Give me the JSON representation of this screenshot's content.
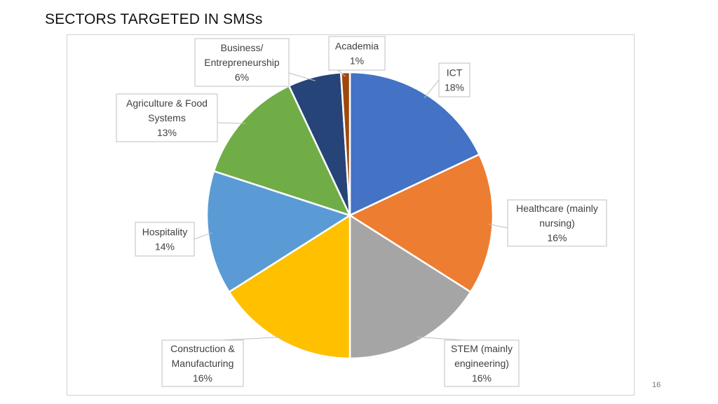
{
  "slide": {
    "title": "SECTORS TARGETED IN SMSs",
    "page_number": "16"
  },
  "chart_data": {
    "type": "pie",
    "title": "",
    "start_angle_deg": 0,
    "direction": "clockwise",
    "legend": "none",
    "slices": [
      {
        "name": "ICT",
        "value": 18,
        "label": "18%",
        "color": "#4472C4",
        "label_lines": [
          "ICT",
          "18%"
        ]
      },
      {
        "name": "Healthcare (mainly nursing)",
        "value": 16,
        "label": "16%",
        "color": "#ED7D31",
        "label_lines": [
          "Healthcare (mainly",
          "nursing)",
          "16%"
        ]
      },
      {
        "name": "STEM (mainly engineering)",
        "value": 16,
        "label": "16%",
        "color": "#A5A5A5",
        "label_lines": [
          "STEM (mainly",
          "engineering)",
          "16%"
        ]
      },
      {
        "name": "Construction & Manufacturing",
        "value": 16,
        "label": "16%",
        "color": "#FFC000",
        "label_lines": [
          "Construction &",
          "Manufacturing",
          "16%"
        ]
      },
      {
        "name": "Hospitality",
        "value": 14,
        "label": "14%",
        "color": "#5B9BD5",
        "label_lines": [
          "Hospitality",
          "14%"
        ]
      },
      {
        "name": "Agriculture & Food Systems",
        "value": 13,
        "label": "13%",
        "color": "#70AD47",
        "label_lines": [
          "Agriculture & Food",
          "Systems",
          "13%"
        ]
      },
      {
        "name": "Business/ Entrepreneurship",
        "value": 6,
        "label": "6%",
        "color": "#264478",
        "label_lines": [
          "Business/",
          "Entrepreneurship",
          "6%"
        ]
      },
      {
        "name": "Academia",
        "value": 1,
        "label": "1%",
        "color": "#9E480E",
        "label_lines": [
          "Academia",
          "1%"
        ]
      }
    ]
  }
}
